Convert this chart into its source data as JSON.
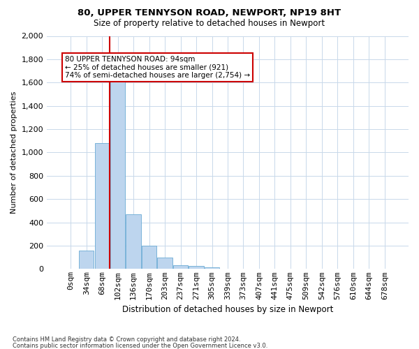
{
  "title1": "80, UPPER TENNYSON ROAD, NEWPORT, NP19 8HT",
  "title2": "Size of property relative to detached houses in Newport",
  "xlabel": "Distribution of detached houses by size in Newport",
  "ylabel": "Number of detached properties",
  "bin_labels": [
    "0sqm",
    "34sqm",
    "68sqm",
    "102sqm",
    "136sqm",
    "170sqm",
    "203sqm",
    "237sqm",
    "271sqm",
    "305sqm",
    "339sqm",
    "373sqm",
    "407sqm",
    "441sqm",
    "475sqm",
    "509sqm",
    "542sqm",
    "576sqm",
    "610sqm",
    "644sqm",
    "678sqm"
  ],
  "bar_heights": [
    0,
    160,
    1080,
    1620,
    470,
    200,
    100,
    35,
    25,
    15,
    5,
    3,
    2,
    0,
    0,
    0,
    0,
    0,
    0,
    0,
    0
  ],
  "bar_color": "#bdd5ee",
  "bar_edge_color": "#6aaad4",
  "grid_color": "#c8d8ea",
  "bg_color": "#ffffff",
  "vline_color": "#cc0000",
  "vline_position": 2.5,
  "annotation_text": "80 UPPER TENNYSON ROAD: 94sqm\n← 25% of detached houses are smaller (921)\n74% of semi-detached houses are larger (2,754) →",
  "annotation_box_color": "#ffffff",
  "annotation_box_edge": "#cc0000",
  "ylim": [
    0,
    2000
  ],
  "yticks": [
    0,
    200,
    400,
    600,
    800,
    1000,
    1200,
    1400,
    1600,
    1800,
    2000
  ],
  "footnote1": "Contains HM Land Registry data © Crown copyright and database right 2024.",
  "footnote2": "Contains public sector information licensed under the Open Government Licence v3.0."
}
